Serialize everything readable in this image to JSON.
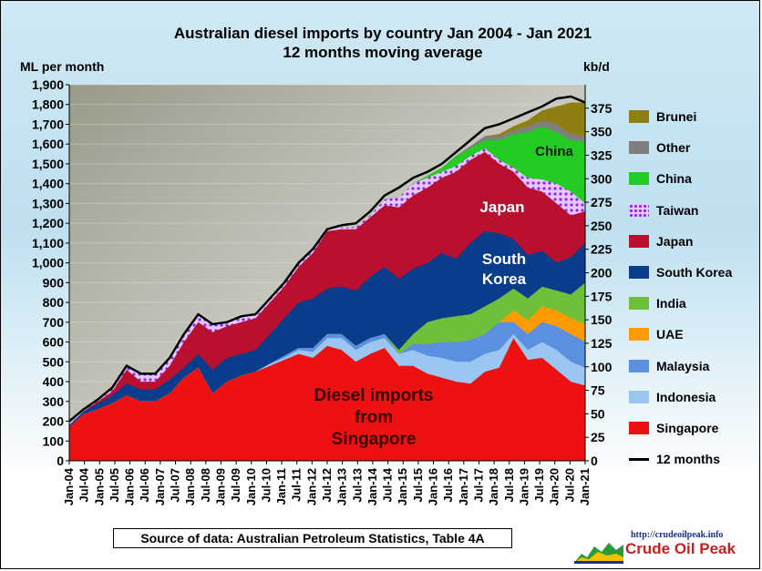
{
  "title_line1": "Australian diesel imports by country Jan 2004 - Jan 2021",
  "title_line2": "12 months moving average",
  "left_unit": "ML per month",
  "right_unit": "kb/d",
  "source_note": "Source of data: Australian Petroleum Statistics, Table 4A",
  "logo": {
    "url": "http://crudeoilpeak.info",
    "name": "Crude Oil Peak"
  },
  "legend": [
    {
      "label": "Brunei",
      "color": "#8f7f10"
    },
    {
      "label": "Other",
      "color": "#7f7f7f"
    },
    {
      "label": "China",
      "color": "#22cc22"
    },
    {
      "label": "Taiwan",
      "color": "#b04fe8"
    },
    {
      "label": "Japan",
      "color": "#b8102e"
    },
    {
      "label": "South Korea",
      "color": "#0a3c8c"
    },
    {
      "label": "India",
      "color": "#6fbf3a"
    },
    {
      "label": "UAE",
      "color": "#ff9a00"
    },
    {
      "label": "Malaysia",
      "color": "#5b8fe0"
    },
    {
      "label": "Indonesia",
      "color": "#9cc6f2"
    },
    {
      "label": "Singapore",
      "color": "#ee1111"
    },
    {
      "label": "12 months",
      "color": "#000000"
    }
  ],
  "chart_data": {
    "type": "area",
    "stacked": true,
    "ylim": [
      0,
      1900
    ],
    "y2lim": [
      0,
      400
    ],
    "yticks": [
      "0",
      "100",
      "200",
      "300",
      "400",
      "500",
      "600",
      "700",
      "800",
      "900",
      "1,000",
      "1,100",
      "1,200",
      "1,300",
      "1,400",
      "1,500",
      "1,600",
      "1,700",
      "1,800",
      "1,900"
    ],
    "y2ticks": [
      "0",
      "25",
      "50",
      "75",
      "100",
      "125",
      "150",
      "175",
      "200",
      "225",
      "250",
      "275",
      "300",
      "325",
      "350",
      "375"
    ],
    "xticks": [
      "Jan-04",
      "Jul-04",
      "Jan-05",
      "Jul-05",
      "Jan-06",
      "Jul-06",
      "Jan-07",
      "Jul-07",
      "Jan-08",
      "Jul-08",
      "Jan-09",
      "Jul-09",
      "Jan-10",
      "Jul-10",
      "Jan-11",
      "Jul-11",
      "Jan-12",
      "Jul-12",
      "Jan-13",
      "Jul-13",
      "Jan-14",
      "Jul-14",
      "Jan-15",
      "Jul-15",
      "Jan-16",
      "Jul-16",
      "Jan-17",
      "Jul-17",
      "Jan-18",
      "Jul-18",
      "Jan-19",
      "Jul-19",
      "Jan-20",
      "Jul-20",
      "Jan-21"
    ],
    "annotations": {
      "singapore": [
        "Diesel imports",
        "from",
        "Singapore"
      ],
      "japan": "Japan",
      "korea": [
        "South",
        "Korea"
      ],
      "china": "China"
    },
    "series_cumulative": [
      {
        "name": "Singapore",
        "color": "#ee1111",
        "values": [
          170,
          235,
          260,
          290,
          330,
          300,
          300,
          340,
          420,
          470,
          340,
          400,
          430,
          450,
          480,
          510,
          540,
          520,
          580,
          560,
          500,
          540,
          570,
          480,
          480,
          440,
          420,
          400,
          390,
          450,
          470,
          620,
          510,
          520,
          460,
          400,
          380
        ]
      },
      {
        "name": "Indonesia",
        "color": "#9cc6f2",
        "values": [
          170,
          235,
          260,
          290,
          330,
          300,
          300,
          340,
          420,
          470,
          340,
          400,
          430,
          450,
          490,
          520,
          560,
          550,
          620,
          620,
          560,
          600,
          620,
          540,
          560,
          530,
          520,
          500,
          500,
          540,
          560,
          640,
          560,
          600,
          560,
          500,
          470
        ]
      },
      {
        "name": "Malaysia",
        "color": "#5b8fe0",
        "values": [
          170,
          235,
          260,
          290,
          330,
          300,
          300,
          340,
          420,
          470,
          340,
          400,
          430,
          450,
          490,
          530,
          570,
          570,
          640,
          640,
          580,
          620,
          640,
          540,
          590,
          590,
          600,
          600,
          610,
          640,
          700,
          700,
          640,
          700,
          680,
          640,
          600
        ]
      },
      {
        "name": "UAE",
        "color": "#ff9a00",
        "values": [
          170,
          235,
          260,
          290,
          330,
          300,
          300,
          340,
          420,
          470,
          340,
          400,
          430,
          450,
          490,
          530,
          570,
          570,
          640,
          640,
          580,
          620,
          640,
          540,
          590,
          590,
          600,
          600,
          610,
          640,
          700,
          760,
          710,
          780,
          760,
          720,
          690
        ]
      },
      {
        "name": "India",
        "color": "#6fbf3a",
        "values": [
          170,
          235,
          260,
          290,
          330,
          300,
          300,
          340,
          420,
          470,
          340,
          400,
          430,
          450,
          490,
          530,
          570,
          570,
          640,
          640,
          580,
          620,
          640,
          560,
          640,
          700,
          720,
          730,
          740,
          780,
          820,
          870,
          820,
          880,
          860,
          840,
          900
        ]
      },
      {
        "name": "South Korea",
        "color": "#0a3c8c",
        "values": [
          180,
          250,
          290,
          330,
          390,
          360,
          360,
          410,
          470,
          540,
          460,
          520,
          540,
          560,
          640,
          720,
          800,
          820,
          870,
          880,
          860,
          930,
          980,
          920,
          970,
          1000,
          1050,
          1020,
          1100,
          1160,
          1150,
          1120,
          1040,
          1060,
          1000,
          1030,
          1100
        ]
      },
      {
        "name": "Japan",
        "color": "#b8102e",
        "values": [
          180,
          250,
          300,
          350,
          460,
          400,
          400,
          480,
          600,
          700,
          650,
          680,
          700,
          720,
          800,
          880,
          980,
          1050,
          1160,
          1170,
          1170,
          1230,
          1290,
          1280,
          1340,
          1380,
          1430,
          1460,
          1520,
          1560,
          1500,
          1460,
          1380,
          1360,
          1300,
          1240,
          1260
        ]
      },
      {
        "name": "Taiwan",
        "color": "#b04fe8",
        "values": [
          185,
          260,
          310,
          370,
          480,
          440,
          440,
          520,
          640,
          740,
          690,
          700,
          730,
          740,
          820,
          900,
          1000,
          1070,
          1170,
          1180,
          1180,
          1240,
          1320,
          1330,
          1400,
          1430,
          1460,
          1490,
          1540,
          1580,
          1520,
          1480,
          1430,
          1420,
          1400,
          1360,
          1300
        ]
      },
      {
        "name": "China",
        "color": "#22cc22",
        "values": [
          185,
          260,
          310,
          370,
          480,
          440,
          440,
          520,
          640,
          740,
          690,
          700,
          730,
          740,
          820,
          900,
          1000,
          1070,
          1170,
          1180,
          1180,
          1240,
          1320,
          1330,
          1400,
          1440,
          1480,
          1540,
          1580,
          1620,
          1620,
          1650,
          1660,
          1690,
          1660,
          1620,
          1610
        ]
      },
      {
        "name": "Other",
        "color": "#7f7f7f",
        "values": [
          185,
          260,
          310,
          370,
          480,
          440,
          440,
          520,
          640,
          740,
          690,
          700,
          730,
          740,
          820,
          900,
          1000,
          1070,
          1170,
          1180,
          1180,
          1240,
          1320,
          1330,
          1400,
          1440,
          1480,
          1540,
          1590,
          1640,
          1640,
          1670,
          1690,
          1720,
          1700,
          1650,
          1640
        ]
      },
      {
        "name": "Brunei",
        "color": "#8f7f10",
        "values": [
          185,
          260,
          310,
          370,
          480,
          440,
          440,
          520,
          640,
          740,
          690,
          700,
          730,
          740,
          820,
          900,
          1000,
          1070,
          1170,
          1180,
          1180,
          1240,
          1320,
          1330,
          1400,
          1440,
          1480,
          1540,
          1590,
          1640,
          1650,
          1690,
          1720,
          1770,
          1790,
          1810,
          1810
        ]
      }
    ],
    "moving_total": {
      "name": "12 months",
      "color": "#000000",
      "values": [
        200,
        260,
        310,
        370,
        480,
        440,
        440,
        520,
        640,
        740,
        690,
        700,
        730,
        740,
        820,
        900,
        1000,
        1070,
        1170,
        1190,
        1200,
        1260,
        1340,
        1380,
        1430,
        1460,
        1500,
        1560,
        1620,
        1680,
        1700,
        1730,
        1760,
        1790,
        1830,
        1840,
        1810
      ]
    }
  }
}
